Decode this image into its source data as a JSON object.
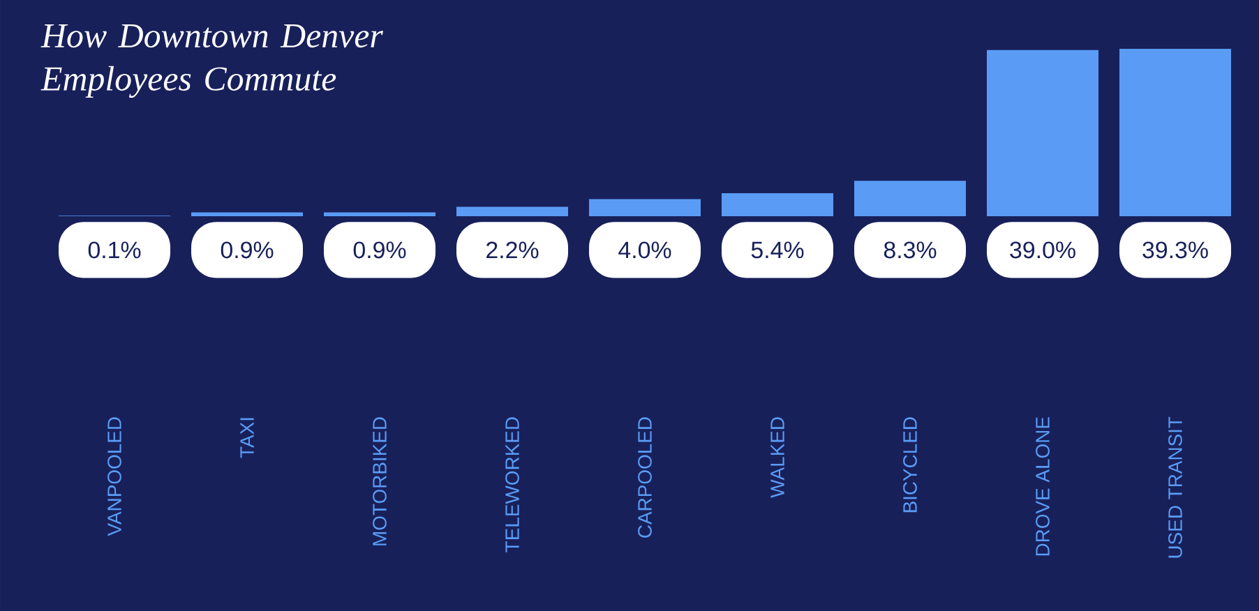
{
  "chart_data": {
    "type": "bar",
    "title": "How Downtown Denver Employees Commute",
    "categories": [
      "VANPOOLED",
      "TAXI",
      "MOTORBIKED",
      "TELEWORKED",
      "CARPOOLED",
      "WALKED",
      "BICYCLED",
      "DROVE ALONE",
      "USED TRANSIT"
    ],
    "values": [
      0.1,
      0.9,
      0.9,
      2.2,
      4.0,
      5.4,
      8.3,
      39.0,
      39.3
    ],
    "value_labels": [
      "0.1%",
      "0.9%",
      "0.9%",
      "2.2%",
      "4.0%",
      "5.4%",
      "8.3%",
      "39.0%",
      "39.3%"
    ],
    "color": "#5a9cf5"
  }
}
